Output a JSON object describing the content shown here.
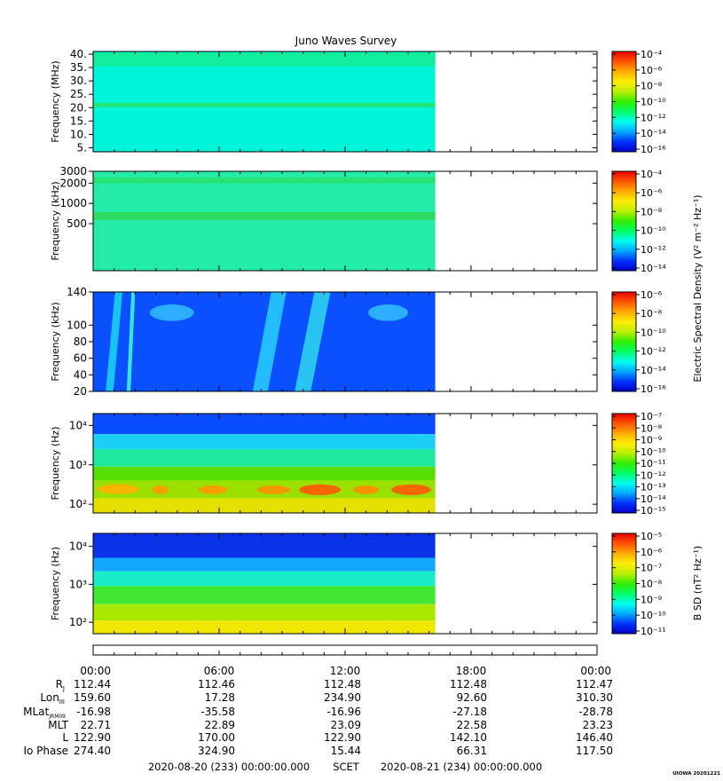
{
  "title": "Juno Waves Survey",
  "stamp": "UIOWA 20201221",
  "footer": {
    "start": "2020-08-20 (233) 00:00:00.000",
    "scet": "SCET",
    "end": "2020-08-21 (234) 00:00:00.000"
  },
  "colorbar_labels": {
    "electric": "Electric Spectral Density (V² m⁻² Hz⁻¹)",
    "magnetic": "B SD (nT² Hz⁻¹)"
  },
  "ephemeris": {
    "time_ticks": [
      "00:00",
      "06:00",
      "12:00",
      "18:00",
      "00:00"
    ],
    "rows": [
      {
        "label": "RJ",
        "values": [
          "112.44",
          "112.46",
          "112.48",
          "112.48",
          "112.47"
        ]
      },
      {
        "label": "LonIII",
        "values": [
          "159.60",
          "17.28",
          "234.90",
          "92.60",
          "310.30"
        ]
      },
      {
        "label": "MLatJRM09",
        "values": [
          "-16.98",
          "-35.58",
          "-16.96",
          "-27.18",
          "-28.78"
        ]
      },
      {
        "label": "MLT",
        "values": [
          "22.71",
          "22.89",
          "23.09",
          "22.58",
          "23.23"
        ]
      },
      {
        "label": "L",
        "values": [
          "122.90",
          "170.00",
          "122.90",
          "142.10",
          "146.40"
        ]
      },
      {
        "label": "Io Phase",
        "values": [
          "274.40",
          "324.90",
          "15.44",
          "66.31",
          "117.50"
        ]
      }
    ]
  },
  "colors": {
    "colormap": [
      "#0000c8",
      "#0033ff",
      "#00aaff",
      "#00ffee",
      "#00ff66",
      "#33ee00",
      "#bbee00",
      "#ffee00",
      "#ffaa00",
      "#ff5500",
      "#ee0000"
    ]
  },
  "chart_data": [
    {
      "type": "heatmap",
      "ylabel": "Frequency (MHz)",
      "yscale": "linear",
      "ylim": [
        3.5,
        41
      ],
      "yticks": [
        "5.",
        "10.",
        "15.",
        "20.",
        "25.",
        "30.",
        "35.",
        "40."
      ],
      "ytick_values": [
        5,
        10,
        15,
        20,
        25,
        30,
        35,
        40
      ],
      "xlim_hours": [
        0,
        24
      ],
      "data_end_hour": 16.3,
      "colorbar_ticks": [
        "10⁻¹⁶",
        "10⁻¹⁴",
        "10⁻¹²",
        "10⁻¹⁰",
        "10⁻⁸",
        "10⁻⁶",
        "10⁻⁴"
      ],
      "background_color": "#00f5d8",
      "features": [
        {
          "kind": "band",
          "y": 21,
          "y_width": 1.6,
          "color": "#22e676"
        },
        {
          "kind": "band",
          "y": 38,
          "y_width": 5,
          "color": "#10ee9c"
        }
      ]
    },
    {
      "type": "heatmap",
      "ylabel": "Frequency (kHz)",
      "yscale": "log",
      "ylim": [
        100,
        3000
      ],
      "yticks": [
        "500",
        "1000",
        "2000",
        "3000"
      ],
      "ytick_values": [
        500,
        1000,
        2000,
        3000
      ],
      "xlim_hours": [
        0,
        24
      ],
      "data_end_hour": 16.3,
      "colorbar_ticks": [
        "10⁻¹⁴",
        "10⁻¹²",
        "10⁻¹⁰",
        "10⁻⁸",
        "10⁻⁶",
        "10⁻⁴"
      ],
      "background_color": "#22eca8",
      "features": [
        {
          "kind": "band",
          "y": 2200,
          "y_width_frac": 0.06,
          "color": "#26e472"
        },
        {
          "kind": "band",
          "y": 650,
          "y_width_frac": 0.08,
          "color": "#2bdc5e"
        }
      ]
    },
    {
      "type": "heatmap",
      "ylabel": "Frequency (kHz)",
      "yscale": "linear",
      "ylim": [
        20,
        140
      ],
      "yticks": [
        "20",
        "40",
        "60",
        "80",
        "100",
        "140"
      ],
      "ytick_values": [
        20,
        40,
        60,
        80,
        100,
        140
      ],
      "xlim_hours": [
        0,
        24
      ],
      "data_end_hour": 16.3,
      "colorbar_ticks": [
        "10⁻¹⁶",
        "10⁻¹⁴",
        "10⁻¹²",
        "10⁻¹⁰",
        "10⁻⁸",
        "10⁻⁶"
      ],
      "background_color": "#0a50ff",
      "features": [
        {
          "kind": "streak",
          "x0": 0.6,
          "x1": 1.4,
          "color": "#18d8f0"
        },
        {
          "kind": "streak",
          "x0": 1.6,
          "x1": 2.0,
          "color": "#40ffd0"
        },
        {
          "kind": "blob",
          "x0": 2.7,
          "x1": 4.8,
          "y0": 105,
          "y1": 125,
          "color": "#30b8ff"
        },
        {
          "kind": "streak",
          "x0": 7.6,
          "x1": 9.2,
          "color": "#28d0ff"
        },
        {
          "kind": "streak",
          "x0": 9.6,
          "x1": 11.3,
          "color": "#30d8f0"
        },
        {
          "kind": "blob",
          "x0": 13.1,
          "x1": 15.0,
          "y0": 105,
          "y1": 125,
          "color": "#30b8ff"
        }
      ]
    },
    {
      "type": "heatmap",
      "ylabel": "Frequency (Hz)",
      "yscale": "log",
      "ylim": [
        60,
        20000
      ],
      "yticks": [
        "10²",
        "10³",
        "10⁴"
      ],
      "ytick_values": [
        100,
        1000,
        10000
      ],
      "xlim_hours": [
        0,
        24
      ],
      "data_end_hour": 16.3,
      "colorbar_ticks": [
        "10⁻¹⁵",
        "10⁻¹⁴",
        "10⁻¹³",
        "10⁻¹²",
        "10⁻¹¹",
        "10⁻¹⁰",
        "10⁻⁹",
        "10⁻⁸",
        "10⁻⁷"
      ],
      "layers": [
        {
          "y0": 6000,
          "y1": 20000,
          "color": "#0a4cff"
        },
        {
          "y0": 2500,
          "y1": 6000,
          "color": "#1ad0f8"
        },
        {
          "y0": 900,
          "y1": 2500,
          "color": "#1ee8a0"
        },
        {
          "y0": 400,
          "y1": 900,
          "color": "#56e000"
        },
        {
          "y0": 140,
          "y1": 400,
          "color": "#9ae000"
        },
        {
          "y0": 60,
          "y1": 140,
          "color": "#e6e000"
        }
      ],
      "features": [
        {
          "kind": "blob",
          "x0": 0.2,
          "x1": 2.2,
          "y0": 180,
          "y1": 320,
          "color": "#ffb000"
        },
        {
          "kind": "blob",
          "x0": 2.8,
          "x1": 3.6,
          "y0": 180,
          "y1": 300,
          "color": "#ff9a00"
        },
        {
          "kind": "blob",
          "x0": 5.0,
          "x1": 6.4,
          "y0": 180,
          "y1": 300,
          "color": "#ff9a00"
        },
        {
          "kind": "blob",
          "x0": 7.8,
          "x1": 9.4,
          "y0": 180,
          "y1": 300,
          "color": "#ff9000"
        },
        {
          "kind": "blob",
          "x0": 9.8,
          "x1": 11.8,
          "y0": 170,
          "y1": 320,
          "color": "#ff5a00"
        },
        {
          "kind": "blob",
          "x0": 12.4,
          "x1": 13.6,
          "y0": 180,
          "y1": 300,
          "color": "#ff8a00"
        },
        {
          "kind": "blob",
          "x0": 14.2,
          "x1": 16.1,
          "y0": 170,
          "y1": 320,
          "color": "#ff5a00"
        }
      ]
    },
    {
      "type": "heatmap",
      "ylabel": "Frequency (Hz)",
      "yscale": "log",
      "ylim": [
        50,
        22000
      ],
      "yticks": [
        "10²",
        "10³",
        "10⁴"
      ],
      "ytick_values": [
        100,
        1000,
        10000
      ],
      "xlim_hours": [
        0,
        24
      ],
      "data_end_hour": 16.3,
      "colorbar_ticks": [
        "10⁻¹¹",
        "10⁻¹⁰",
        "10⁻⁹",
        "10⁻⁸",
        "10⁻⁷",
        "10⁻⁶",
        "10⁻⁵"
      ],
      "layers": [
        {
          "y0": 5000,
          "y1": 22000,
          "color": "#0a32e8"
        },
        {
          "y0": 2200,
          "y1": 5000,
          "color": "#12a8ff"
        },
        {
          "y0": 900,
          "y1": 2200,
          "color": "#18ecc8"
        },
        {
          "y0": 300,
          "y1": 900,
          "color": "#40e830"
        },
        {
          "y0": 110,
          "y1": 300,
          "color": "#a8e800"
        },
        {
          "y0": 50,
          "y1": 110,
          "color": "#f0e800"
        }
      ],
      "features": []
    }
  ]
}
